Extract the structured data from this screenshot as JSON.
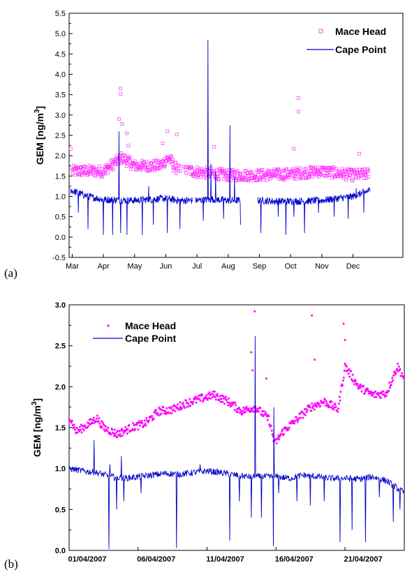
{
  "chart_data": [
    {
      "type": "scatter",
      "panel_label": "(a)",
      "ylabel_main": "GEM [ng/m",
      "ylabel_sup": "3",
      "ylabel_end": "]",
      "xlabel": "",
      "ylim": [
        -0.5,
        5.5
      ],
      "yticks": [
        "-0.5",
        "0.0",
        "0.5",
        "1.0",
        "1.5",
        "2.0",
        "2.5",
        "3.0",
        "3.5",
        "4.0",
        "4.5",
        "5.0",
        "5.5"
      ],
      "categories": [
        "Mar",
        "Apr",
        "May",
        "Jun",
        "Jul",
        "Aug",
        "Sep",
        "Oct",
        "Nov",
        "Dec"
      ],
      "legend_position": "top-right",
      "grid": false,
      "series": [
        {
          "name": "Mace Head",
          "marker": "open-square",
          "color": "#ff33ff",
          "baseline": [
            [
              0,
              1.62
            ],
            [
              1,
              1.62
            ],
            [
              1.6,
              1.95
            ],
            [
              2,
              1.75
            ],
            [
              2.8,
              1.75
            ],
            [
              3.1,
              1.95
            ],
            [
              3.3,
              1.7
            ],
            [
              4,
              1.6
            ],
            [
              5,
              1.52
            ],
            [
              6,
              1.52
            ],
            [
              7,
              1.55
            ],
            [
              8,
              1.62
            ],
            [
              9,
              1.52
            ],
            [
              9.5,
              1.55
            ]
          ],
          "outliers": [
            [
              -0.05,
              2.17
            ],
            [
              1.55,
              3.65
            ],
            [
              1.55,
              3.52
            ],
            [
              1.5,
              2.9
            ],
            [
              1.6,
              2.78
            ],
            [
              1.75,
              2.55
            ],
            [
              3.05,
              2.6
            ],
            [
              3.35,
              2.52
            ],
            [
              4.55,
              2.22
            ],
            [
              7.25,
              3.42
            ],
            [
              7.25,
              3.08
            ],
            [
              7.1,
              2.17
            ],
            [
              9.2,
              2.05
            ],
            [
              1.8,
              2.25
            ],
            [
              2.9,
              2.3
            ]
          ]
        },
        {
          "name": "Cape Point",
          "marker": "line",
          "color": "#0000cc",
          "baseline": [
            [
              -0.05,
              1.15
            ],
            [
              0.5,
              1.0
            ],
            [
              1,
              0.92
            ],
            [
              2,
              0.9
            ],
            [
              3,
              0.95
            ],
            [
              3.4,
              0.9
            ],
            [
              4,
              0.9
            ],
            [
              4.5,
              0.93
            ],
            [
              5,
              0.9
            ],
            [
              5.9,
              0.9
            ],
            [
              6.5,
              0.88
            ],
            [
              7.3,
              0.88
            ],
            [
              8,
              0.9
            ],
            [
              9,
              1.0
            ],
            [
              9.55,
              1.15
            ]
          ],
          "gaps": [
            [
              3.85,
              3.95
            ],
            [
              5.4,
              5.95
            ]
          ],
          "spikes_up": [
            [
              1.5,
              2.6
            ],
            [
              2.45,
              1.25
            ],
            [
              4.35,
              4.85
            ],
            [
              4.45,
              1.8
            ],
            [
              4.6,
              1.6
            ],
            [
              5.05,
              2.75
            ],
            [
              5.2,
              1.5
            ],
            [
              9.1,
              1.2
            ]
          ],
          "dips": [
            [
              0.2,
              0.6
            ],
            [
              0.5,
              0.2
            ],
            [
              1.0,
              0.05
            ],
            [
              1.3,
              0.05
            ],
            [
              1.55,
              0.1
            ],
            [
              1.75,
              0.05
            ],
            [
              2.25,
              0.05
            ],
            [
              2.6,
              0.3
            ],
            [
              3.05,
              0.1
            ],
            [
              3.45,
              0.2
            ],
            [
              4.2,
              0.4
            ],
            [
              4.85,
              0.45
            ],
            [
              5.2,
              0.05
            ],
            [
              5.4,
              0.3
            ],
            [
              6.05,
              0.1
            ],
            [
              6.6,
              0.5
            ],
            [
              6.85,
              0.05
            ],
            [
              7.1,
              0.5
            ],
            [
              7.45,
              0.1
            ],
            [
              7.9,
              0.6
            ],
            [
              8.4,
              0.5
            ],
            [
              8.85,
              0.45
            ],
            [
              9.35,
              0.6
            ]
          ]
        }
      ]
    },
    {
      "type": "scatter",
      "panel_label": "(b)",
      "ylabel_main": "GEM [ng/m",
      "ylabel_sup": "3",
      "ylabel_end": "]",
      "xlabel": "",
      "ylim": [
        0.0,
        3.0
      ],
      "yticks": [
        "0.0",
        "0.5",
        "1.0",
        "1.5",
        "2.0",
        "2.5",
        "3.0"
      ],
      "categories": [
        "01/04/2007",
        "06/04/2007",
        "11/04/2007",
        "16/04/2007",
        "21/04/2007"
      ],
      "xlim_days": [
        1,
        25.3
      ],
      "legend_position": "top-left",
      "grid": false,
      "series": [
        {
          "name": "Mace Head",
          "marker": "filled-dot",
          "color": "#ff00ff",
          "baseline": [
            [
              1,
              1.65
            ],
            [
              1.5,
              1.45
            ],
            [
              2.5,
              1.55
            ],
            [
              3,
              1.62
            ],
            [
              3.5,
              1.5
            ],
            [
              4.5,
              1.42
            ],
            [
              5.5,
              1.5
            ],
            [
              6.5,
              1.55
            ],
            [
              7.5,
              1.7
            ],
            [
              8.5,
              1.72
            ],
            [
              9.5,
              1.8
            ],
            [
              10.5,
              1.85
            ],
            [
              11.5,
              1.9
            ],
            [
              12.5,
              1.82
            ],
            [
              13.5,
              1.7
            ],
            [
              14.5,
              1.75
            ],
            [
              15.5,
              1.6
            ],
            [
              15.9,
              1.3
            ],
            [
              16.5,
              1.45
            ],
            [
              17.5,
              1.6
            ],
            [
              18.5,
              1.75
            ],
            [
              19.5,
              1.82
            ],
            [
              20.5,
              1.72
            ],
            [
              21,
              2.25
            ],
            [
              22,
              2.0
            ],
            [
              23,
              1.9
            ],
            [
              24,
              1.92
            ],
            [
              24.8,
              2.25
            ],
            [
              25.3,
              2.1
            ]
          ],
          "outliers": [
            [
              14.2,
              2.42
            ],
            [
              14.45,
              2.92
            ],
            [
              14.3,
              2.2
            ],
            [
              18.6,
              2.87
            ],
            [
              18.8,
              2.33
            ],
            [
              20.9,
              2.77
            ],
            [
              21.0,
              2.57
            ],
            [
              15.3,
              2.1
            ]
          ]
        },
        {
          "name": "Cape Point",
          "marker": "line",
          "color": "#0000cc",
          "baseline": [
            [
              1,
              1.0
            ],
            [
              2,
              0.97
            ],
            [
              3,
              0.95
            ],
            [
              4,
              0.9
            ],
            [
              5,
              0.88
            ],
            [
              6,
              0.9
            ],
            [
              7,
              0.92
            ],
            [
              8,
              0.94
            ],
            [
              9,
              0.93
            ],
            [
              10,
              0.95
            ],
            [
              11,
              0.97
            ],
            [
              12,
              0.95
            ],
            [
              13,
              0.92
            ],
            [
              14,
              0.9
            ],
            [
              15,
              0.9
            ],
            [
              16,
              0.9
            ],
            [
              17,
              0.88
            ],
            [
              18,
              0.92
            ],
            [
              19,
              0.9
            ],
            [
              20,
              0.88
            ],
            [
              21,
              0.88
            ],
            [
              22,
              0.87
            ],
            [
              23,
              0.9
            ],
            [
              24,
              0.85
            ],
            [
              25.3,
              0.7
            ]
          ],
          "spikes_up": [
            [
              2.8,
              1.35
            ],
            [
              4.8,
              1.15
            ],
            [
              3.95,
              1.05
            ],
            [
              14.5,
              2.62
            ],
            [
              15.85,
              1.75
            ],
            [
              10.5,
              1.05
            ]
          ],
          "dips": [
            [
              3.9,
              0.02
            ],
            [
              4.45,
              0.5
            ],
            [
              4.95,
              0.6
            ],
            [
              6.2,
              0.7
            ],
            [
              8.8,
              0.03
            ],
            [
              12.65,
              0.12
            ],
            [
              13.35,
              0.6
            ],
            [
              14.2,
              0.4
            ],
            [
              14.95,
              0.4
            ],
            [
              15.8,
              0.05
            ],
            [
              16.2,
              0.7
            ],
            [
              17.5,
              0.6
            ],
            [
              18.5,
              0.55
            ],
            [
              19.5,
              0.6
            ],
            [
              20.65,
              0.1
            ],
            [
              21.5,
              0.25
            ],
            [
              22.5,
              0.1
            ],
            [
              23.5,
              0.65
            ],
            [
              24.5,
              0.35
            ],
            [
              25.0,
              0.5
            ]
          ]
        }
      ]
    }
  ]
}
